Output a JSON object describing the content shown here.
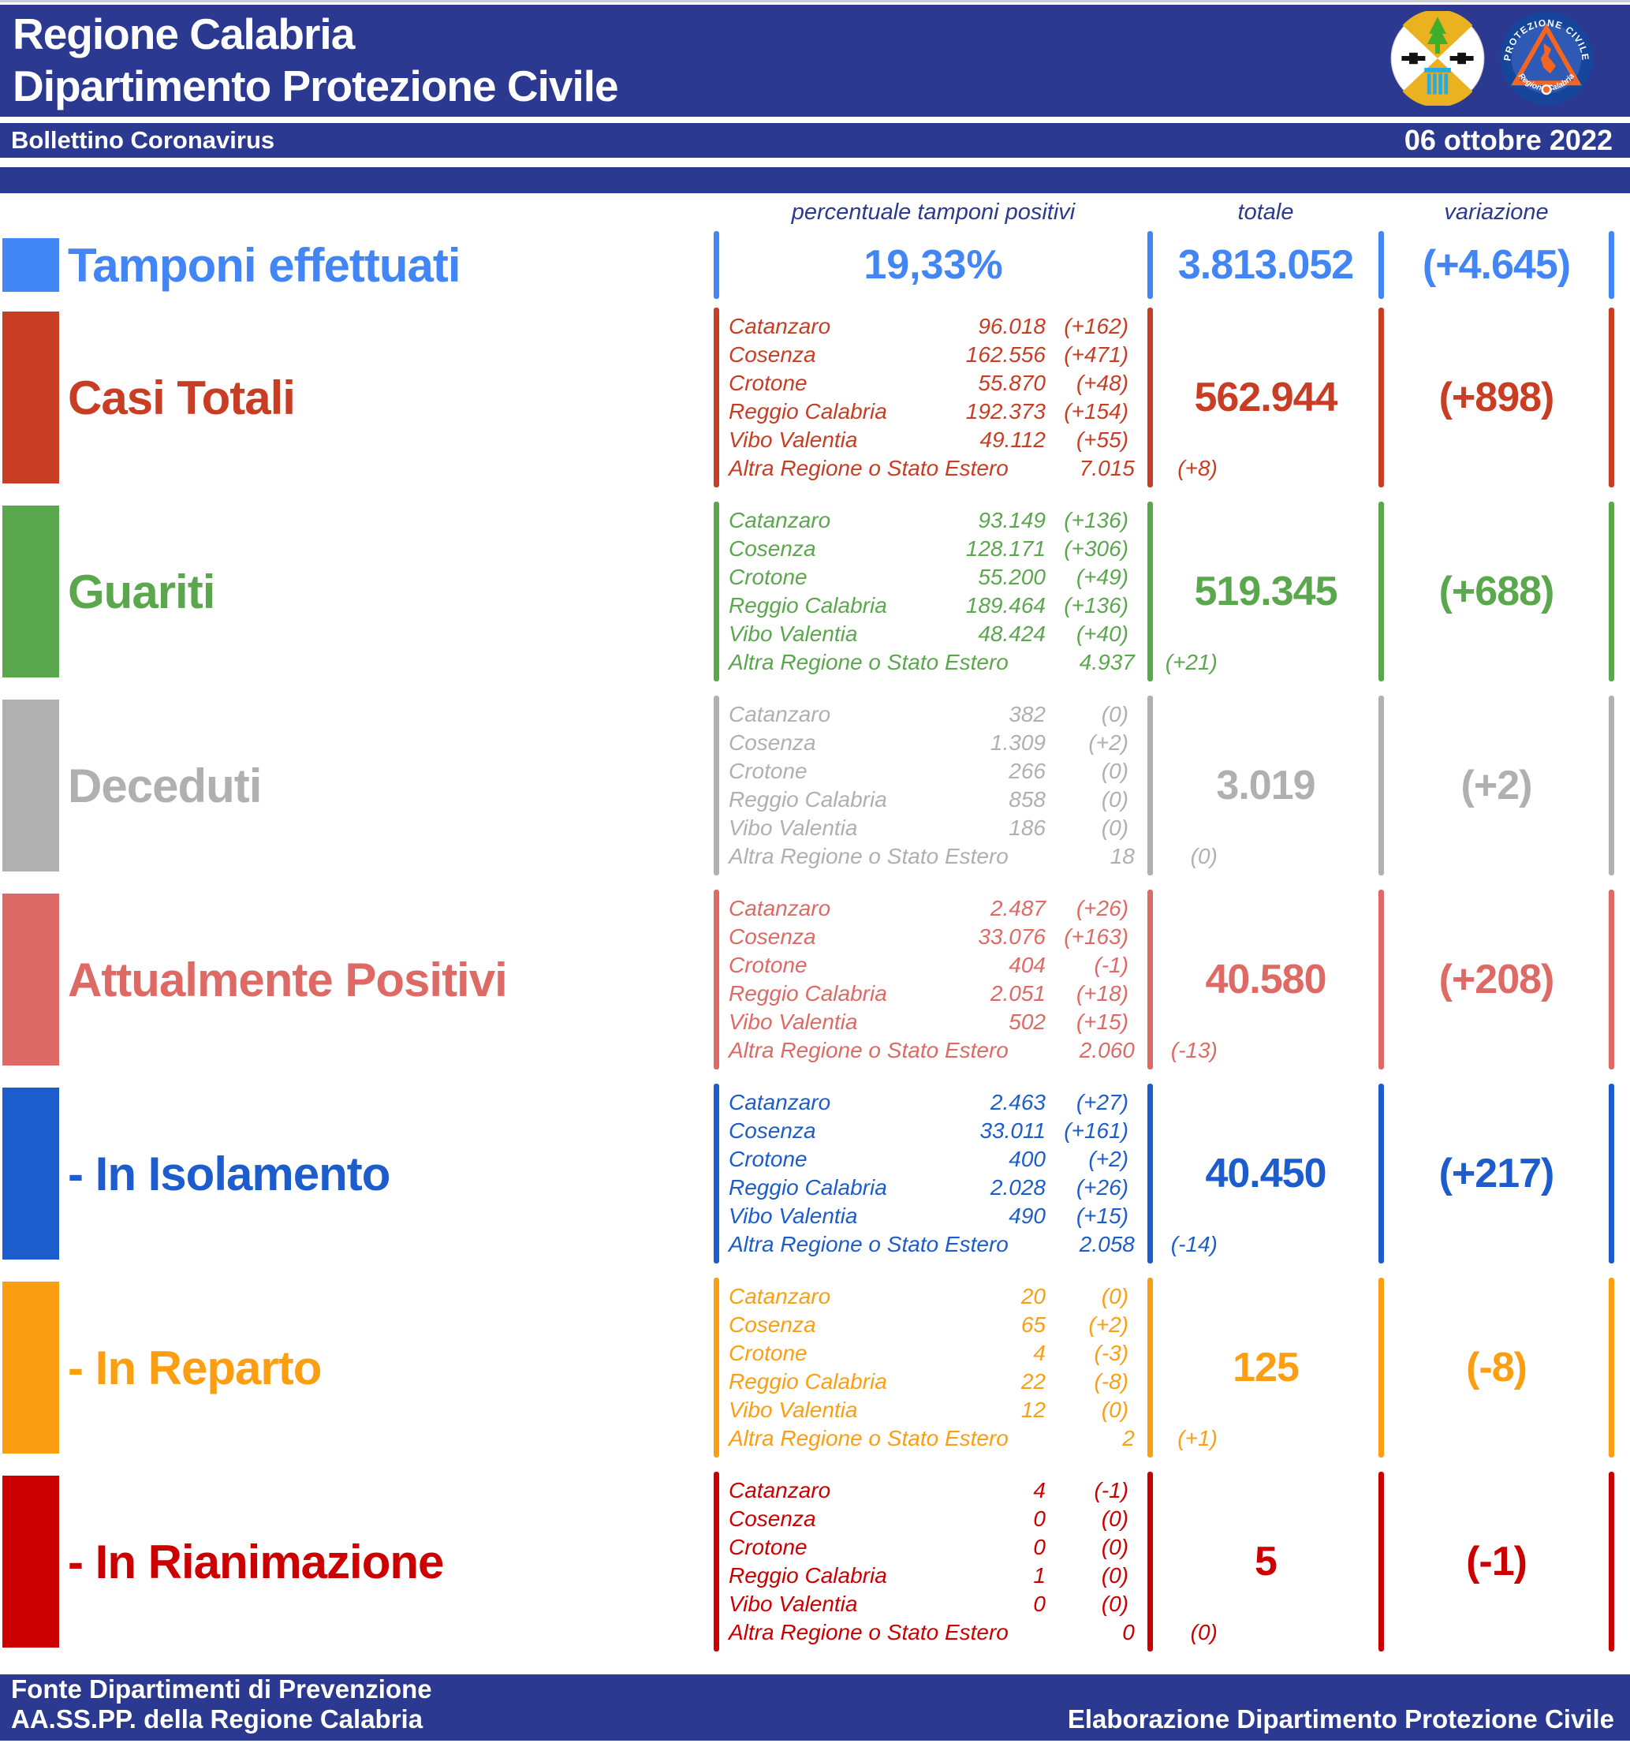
{
  "header": {
    "title_line1": "Regione Calabria",
    "title_line2": "Dipartimento Protezione Civile",
    "subtitle": "Bollettino Coronavirus",
    "date": "06 ottobre 2022",
    "logo_pc_text_top": "PROTEZIONE CIVILE",
    "logo_pc_text_bottom": "Regione Calabria"
  },
  "columns": {
    "breakdown": "percentuale tamponi positivi",
    "total": "totale",
    "variation": "variazione"
  },
  "colors": {
    "band_navy": "#2b3a90",
    "tamponi_blue": "#4285f4",
    "casi_red": "#c83e24",
    "guariti_green": "#5ba74e",
    "deceduti_gray": "#b0b0b0",
    "positivi_salmon": "#dd6a64",
    "isolamento_blue": "#1d5ccc",
    "reparto_orange": "#fc9e12",
    "rianimazione_red": "#cc0000"
  },
  "rows": [
    {
      "id": "tamponi-effettuati",
      "label": "Tamponi effettuati",
      "color": "#4285f4",
      "percent": "19,33%",
      "total": "3.813.052",
      "variation": "(+4.645)"
    },
    {
      "id": "casi-totali",
      "label": "Casi Totali",
      "color": "#c83e24",
      "total": "562.944",
      "variation": "(+898)",
      "breakdown": [
        {
          "name": "Catanzaro",
          "value": "96.018",
          "variation": "(+162)"
        },
        {
          "name": "Cosenza",
          "value": "162.556",
          "variation": "(+471)"
        },
        {
          "name": "Crotone",
          "value": "55.870",
          "variation": "(+48)"
        },
        {
          "name": "Reggio Calabria",
          "value": "192.373",
          "variation": "(+154)"
        },
        {
          "name": "Vibo Valentia",
          "value": "49.112",
          "variation": "(+55)"
        },
        {
          "name": "Altra Regione o Stato Estero",
          "value": "7.015",
          "variation": "(+8)"
        }
      ]
    },
    {
      "id": "guariti",
      "label": "Guariti",
      "color": "#5ba74e",
      "total": "519.345",
      "variation": "(+688)",
      "breakdown": [
        {
          "name": "Catanzaro",
          "value": "93.149",
          "variation": "(+136)"
        },
        {
          "name": "Cosenza",
          "value": "128.171",
          "variation": "(+306)"
        },
        {
          "name": "Crotone",
          "value": "55.200",
          "variation": "(+49)"
        },
        {
          "name": "Reggio Calabria",
          "value": "189.464",
          "variation": "(+136)"
        },
        {
          "name": "Vibo Valentia",
          "value": "48.424",
          "variation": "(+40)"
        },
        {
          "name": "Altra Regione o Stato Estero",
          "value": "4.937",
          "variation": "(+21)"
        }
      ]
    },
    {
      "id": "deceduti",
      "label": "Deceduti",
      "color": "#b0b0b0",
      "total": "3.019",
      "variation": "(+2)",
      "breakdown": [
        {
          "name": "Catanzaro",
          "value": "382",
          "variation": "(0)"
        },
        {
          "name": "Cosenza",
          "value": "1.309",
          "variation": "(+2)"
        },
        {
          "name": "Crotone",
          "value": "266",
          "variation": "(0)"
        },
        {
          "name": "Reggio Calabria",
          "value": "858",
          "variation": "(0)"
        },
        {
          "name": "Vibo Valentia",
          "value": "186",
          "variation": "(0)"
        },
        {
          "name": "Altra Regione o Stato Estero",
          "value": "18",
          "variation": "(0)"
        }
      ]
    },
    {
      "id": "attualmente-positivi",
      "label": "Attualmente Positivi",
      "color": "#dd6a64",
      "total": "40.580",
      "variation": "(+208)",
      "breakdown": [
        {
          "name": "Catanzaro",
          "value": "2.487",
          "variation": "(+26)"
        },
        {
          "name": "Cosenza",
          "value": "33.076",
          "variation": "(+163)"
        },
        {
          "name": "Crotone",
          "value": "404",
          "variation": "(-1)"
        },
        {
          "name": "Reggio Calabria",
          "value": "2.051",
          "variation": "(+18)"
        },
        {
          "name": "Vibo Valentia",
          "value": "502",
          "variation": "(+15)"
        },
        {
          "name": "Altra Regione o Stato Estero",
          "value": "2.060",
          "variation": "(-13)"
        }
      ]
    },
    {
      "id": "in-isolamento",
      "label": "- In Isolamento",
      "color": "#1d5ccc",
      "total": "40.450",
      "variation": "(+217)",
      "breakdown": [
        {
          "name": "Catanzaro",
          "value": "2.463",
          "variation": "(+27)"
        },
        {
          "name": "Cosenza",
          "value": "33.011",
          "variation": "(+161)"
        },
        {
          "name": "Crotone",
          "value": "400",
          "variation": "(+2)"
        },
        {
          "name": "Reggio Calabria",
          "value": "2.028",
          "variation": "(+26)"
        },
        {
          "name": "Vibo Valentia",
          "value": "490",
          "variation": "(+15)"
        },
        {
          "name": "Altra Regione o Stato Estero",
          "value": "2.058",
          "variation": "(-14)"
        }
      ]
    },
    {
      "id": "in-reparto",
      "label": "- In Reparto",
      "color": "#fc9e12",
      "total": "125",
      "variation": "(-8)",
      "breakdown": [
        {
          "name": "Catanzaro",
          "value": "20",
          "variation": "(0)"
        },
        {
          "name": "Cosenza",
          "value": "65",
          "variation": "(+2)"
        },
        {
          "name": "Crotone",
          "value": "4",
          "variation": "(-3)"
        },
        {
          "name": "Reggio Calabria",
          "value": "22",
          "variation": "(-8)"
        },
        {
          "name": "Vibo Valentia",
          "value": "12",
          "variation": "(0)"
        },
        {
          "name": "Altra Regione o Stato Estero",
          "value": "2",
          "variation": "(+1)"
        }
      ]
    },
    {
      "id": "in-rianimazione",
      "label": "- In Rianimazione",
      "color": "#cc0000",
      "total": "5",
      "variation": "(-1)",
      "breakdown": [
        {
          "name": "Catanzaro",
          "value": "4",
          "variation": "(-1)"
        },
        {
          "name": "Cosenza",
          "value": "0",
          "variation": "(0)"
        },
        {
          "name": "Crotone",
          "value": "0",
          "variation": "(0)"
        },
        {
          "name": "Reggio Calabria",
          "value": "1",
          "variation": "(0)"
        },
        {
          "name": "Vibo Valentia",
          "value": "0",
          "variation": "(0)"
        },
        {
          "name": "Altra Regione o Stato Estero",
          "value": "0",
          "variation": "(0)"
        }
      ]
    }
  ],
  "footer": {
    "line1": "Fonte Dipartimenti di Prevenzione",
    "line2": "AA.SS.PP.  della Regione Calabria",
    "right": "Elaborazione Dipartimento Protezione Civile"
  }
}
